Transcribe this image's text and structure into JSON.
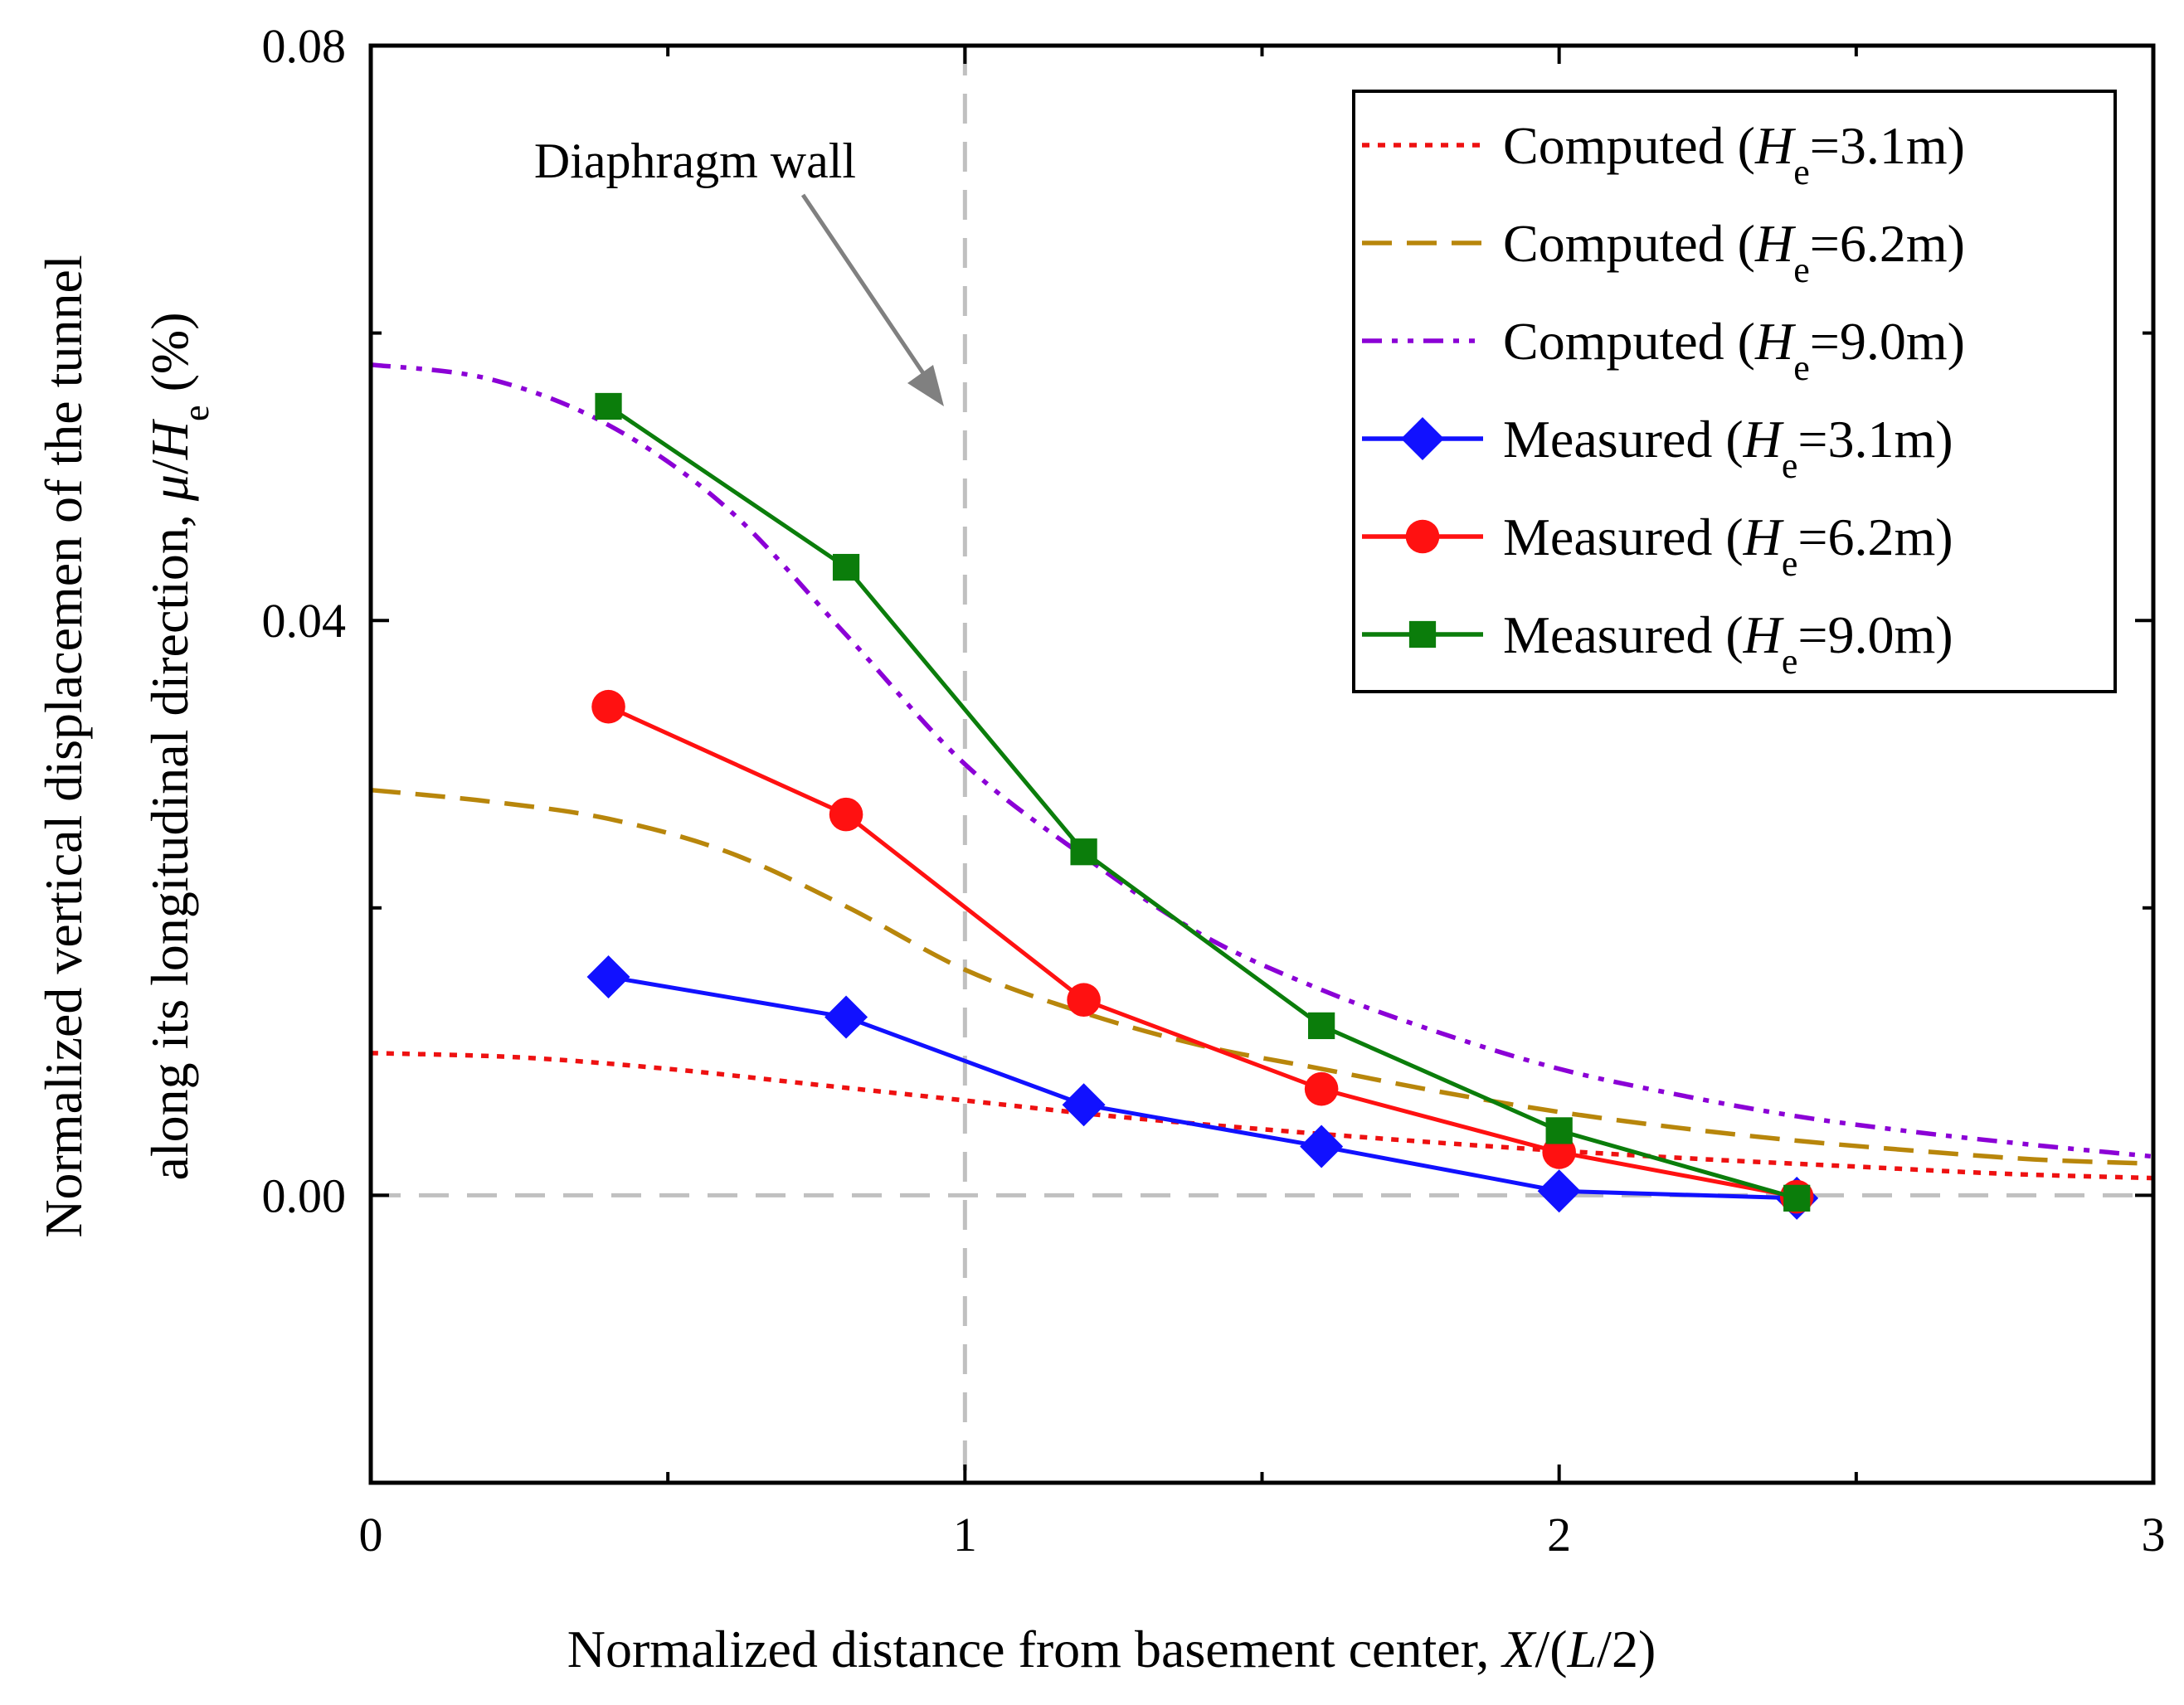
{
  "chart_data": {
    "type": "line",
    "xlabel": "Normalized distance from basement center, X/(L/2)",
    "xlabel_parts": {
      "pre": "Normalized distance from basement center, ",
      "X": "X",
      "mid": "/(",
      "L": "L",
      "post": "/2)"
    },
    "ylabel_line1": "Normalized vertical displacemen of the tunnel",
    "ylabel_line2_parts": {
      "pre": "along its longitudinal direction, ",
      "mu": "μ",
      "slash": "/",
      "H": "H",
      "sub": "e",
      "post": " (%)"
    },
    "xlim": [
      0,
      3
    ],
    "ylim": [
      -0.02,
      0.08
    ],
    "x_ticks": [
      {
        "value": 0,
        "label": "0"
      },
      {
        "value": 1,
        "label": "1"
      },
      {
        "value": 2,
        "label": "2"
      },
      {
        "value": 3,
        "label": "3"
      }
    ],
    "y_ticks": [
      {
        "value": 0.0,
        "label": "0.00"
      },
      {
        "value": 0.04,
        "label": "0.04"
      },
      {
        "value": 0.08,
        "label": "0.08"
      }
    ],
    "annotation": {
      "text": "Diaphragm wall",
      "x_line": 1,
      "zero_line": 0
    },
    "series": [
      {
        "name": "Computed (He=3.1m)",
        "prefix": "Computed (",
        "value": "=3.1m)",
        "color": "#ee1111",
        "style": "dot",
        "marker": "none",
        "x": [
          0,
          0.25,
          0.5,
          0.75,
          1.0,
          1.25,
          1.5,
          1.75,
          2.0,
          2.25,
          2.5,
          2.75,
          3.0
        ],
        "values": [
          0.0099,
          0.0096,
          0.0088,
          0.0077,
          0.0066,
          0.0055,
          0.0046,
          0.0038,
          0.0031,
          0.0025,
          0.002,
          0.0015,
          0.0012
        ]
      },
      {
        "name": "Computed (He=6.2m)",
        "prefix": "Computed (",
        "value": "=6.2m)",
        "color": "#b8860b",
        "style": "dash",
        "marker": "none",
        "x": [
          0,
          0.2,
          0.4,
          0.6,
          0.8,
          1.0,
          1.2,
          1.4,
          1.6,
          1.8,
          2.0,
          2.2,
          2.4,
          2.6,
          2.8,
          3.0
        ],
        "values": [
          0.0282,
          0.0274,
          0.0262,
          0.0239,
          0.0201,
          0.0157,
          0.0127,
          0.0104,
          0.0088,
          0.0072,
          0.0058,
          0.0047,
          0.0038,
          0.0031,
          0.0025,
          0.0022
        ]
      },
      {
        "name": "Computed (He=9.0m)",
        "prefix": "Computed (",
        "value": "=9.0m)",
        "color": "#8b00d6",
        "style": "dashdotdot",
        "marker": "none",
        "x": [
          0,
          0.2,
          0.4,
          0.6,
          0.8,
          1.0,
          1.2,
          1.4,
          1.6,
          1.8,
          2.0,
          2.2,
          2.4,
          2.6,
          2.8,
          3.0
        ],
        "values": [
          0.0578,
          0.0568,
          0.0536,
          0.0478,
          0.039,
          0.03,
          0.0236,
          0.0181,
          0.0143,
          0.0113,
          0.0088,
          0.007,
          0.0055,
          0.0044,
          0.0035,
          0.0027
        ]
      },
      {
        "name": "Measured (He=3.1m)",
        "prefix": "Measured (",
        "value": "=3.1m)",
        "color": "#1111ff",
        "style": "solid",
        "marker": "diamond",
        "x": [
          0.4,
          0.8,
          1.2,
          1.6,
          2.0,
          2.4
        ],
        "values": [
          0.0152,
          0.0124,
          0.0063,
          0.0034,
          0.0003,
          -0.0002
        ]
      },
      {
        "name": "Measured (He=6.2m)",
        "prefix": "Measured (",
        "value": "=6.2m)",
        "color": "#ff1111",
        "style": "solid",
        "marker": "circle",
        "x": [
          0.4,
          0.8,
          1.2,
          1.6,
          2.0,
          2.4
        ],
        "values": [
          0.034,
          0.0265,
          0.0136,
          0.0074,
          0.003,
          -0.0001
        ]
      },
      {
        "name": "Measured (He=9.0m)",
        "prefix": "Measured (",
        "value": "=9.0m)",
        "color": "#0b7d0b",
        "style": "solid",
        "marker": "square",
        "x": [
          0.4,
          0.8,
          1.2,
          1.6,
          2.0,
          2.4
        ],
        "values": [
          0.0549,
          0.0437,
          0.0239,
          0.0118,
          0.0045,
          -0.0002
        ]
      }
    ],
    "legend_placement": "top-right",
    "legend_var": "H",
    "legend_sub": "e"
  }
}
